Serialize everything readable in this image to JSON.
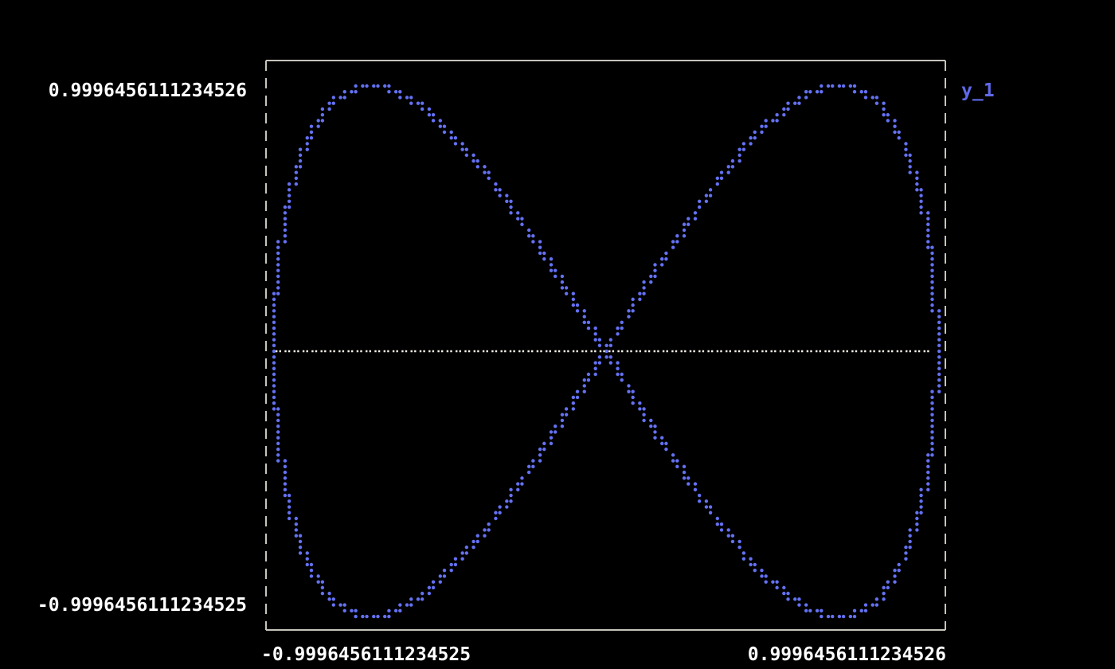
{
  "colors": {
    "background": "#000000",
    "frame": "#c7c4bc",
    "tick_label": "#ffffff",
    "series_y1": "#6471f2",
    "zero_line": "#f6f2e8",
    "legend_y1": "#5f6ae8"
  },
  "chart_data": {
    "type": "scatter",
    "title": "",
    "xlabel": "",
    "ylabel": "",
    "description": "Lissajous figure-eight curve plotted as terminal-style dot scatter on black background with dotted zero line",
    "series": [
      {
        "name": "y_1",
        "color": "#6471f2",
        "marker": "dot",
        "parametric": {
          "x_formula": "sin(t)",
          "y_formula": "sin(2t)",
          "x_coef": 1,
          "y_coef": 2,
          "t_min": 0,
          "t_max": 6.283185307179586,
          "samples": 6000
        }
      }
    ],
    "zero_line": {
      "y": 0,
      "style": "dotted",
      "color": "#f6f2e8"
    },
    "xlim": [
      -0.9996456111234525,
      0.9996456111234526
    ],
    "ylim": [
      -0.9996456111234525,
      0.9996456111234526
    ],
    "x_tick_labels": {
      "min": "-0.9996456111234525",
      "max": "0.9996456111234526"
    },
    "y_tick_labels": {
      "min": "-0.9996456111234525",
      "max": "0.9996456111234526"
    },
    "legend": [
      {
        "label": "y_1",
        "color": "#5f6ae8"
      }
    ],
    "legend_position": "outside-right-top",
    "grid": false,
    "frame_style": {
      "top": "solid",
      "bottom": "solid",
      "left": "dashed",
      "right": "dashed"
    }
  }
}
